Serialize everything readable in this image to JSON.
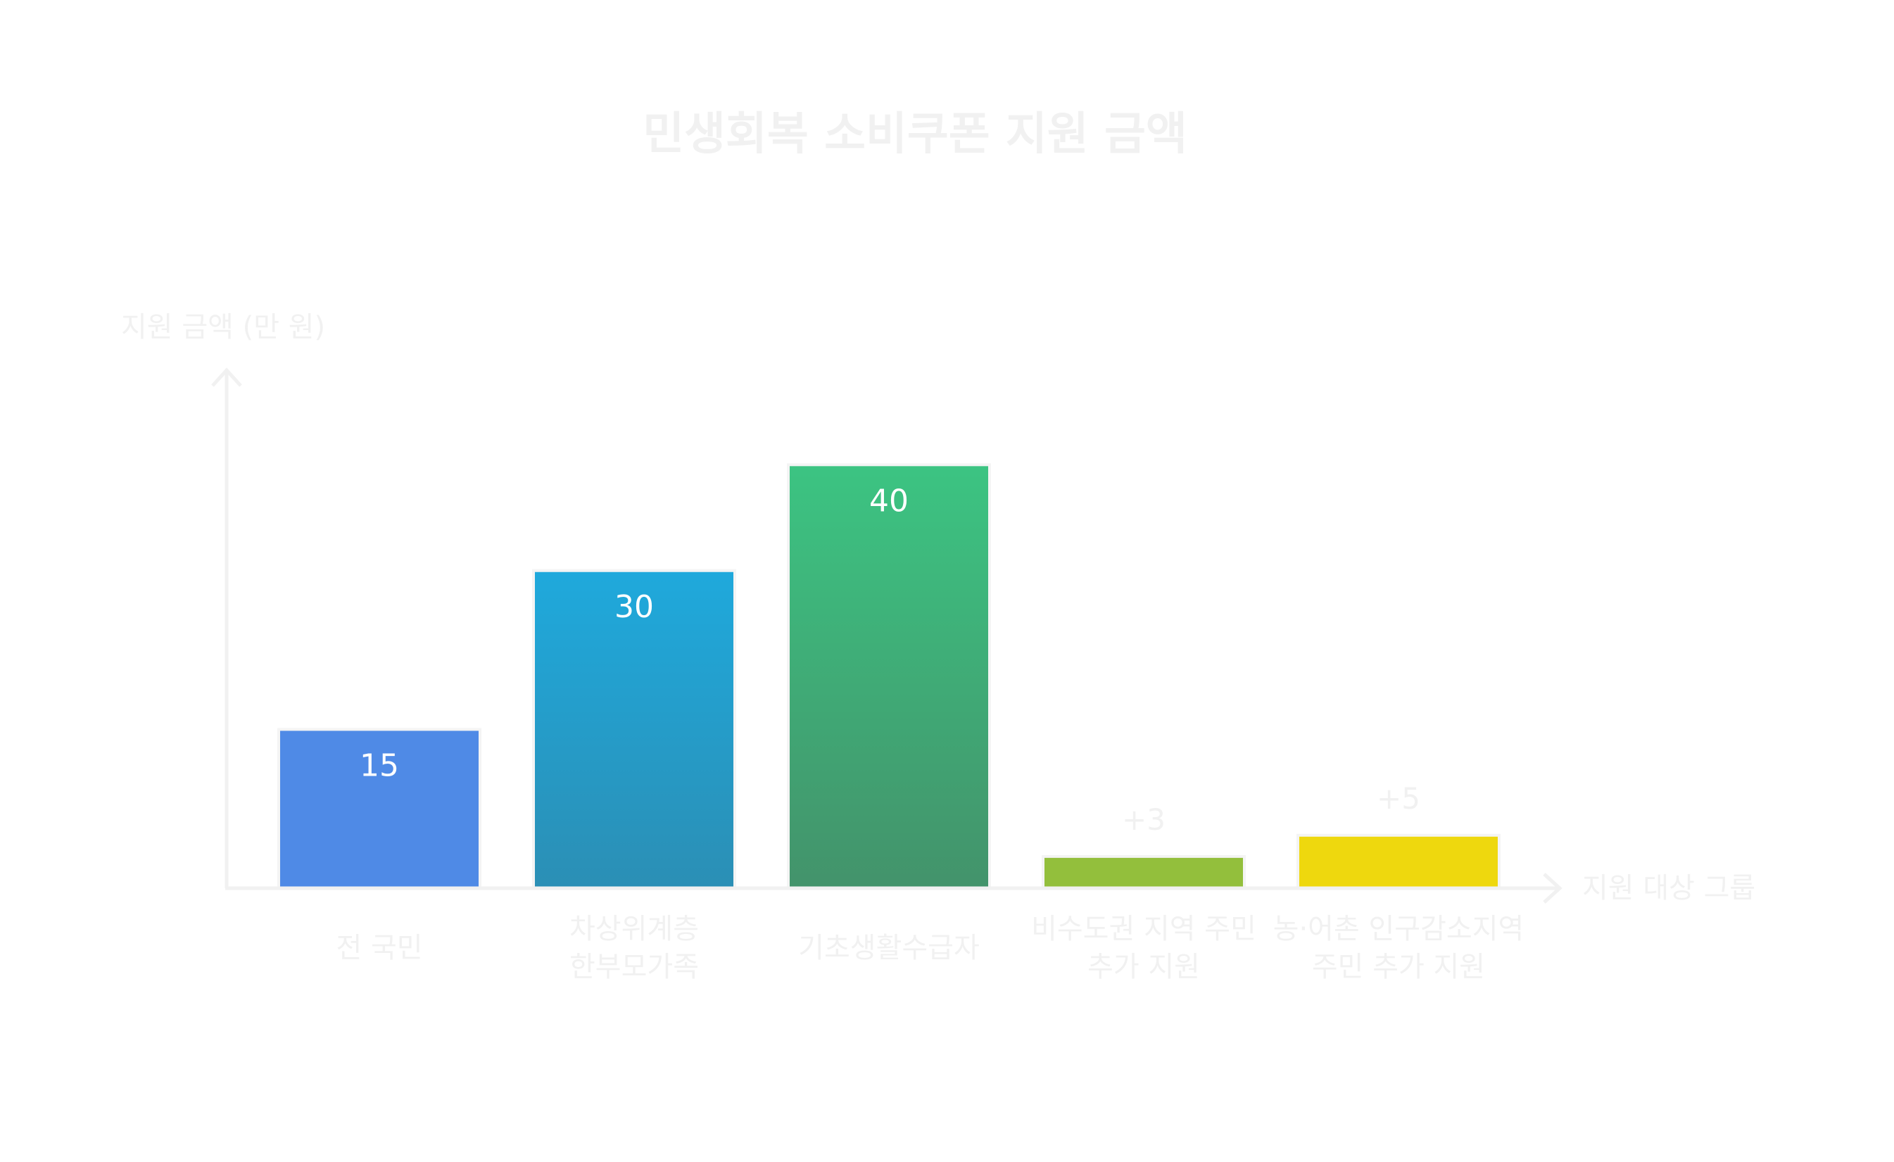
{
  "chart_data": {
    "type": "bar",
    "title": "민생회복 소비쿠폰 지원 금액",
    "ylabel": "지원 금액 (만 원)",
    "xlabel": "지원 대상 그룹",
    "ylim": [
      0,
      48
    ],
    "categories": [
      [
        "전 국민"
      ],
      [
        "차상위계층",
        "한부모가족"
      ],
      [
        "기초생활수급자"
      ],
      [
        "비수도권 지역 주민",
        "추가 지원"
      ],
      [
        "농·어촌 인구감소지역",
        "주민 추가 지원"
      ]
    ],
    "values": [
      15,
      30,
      40,
      3,
      5
    ],
    "value_labels": [
      "15",
      "30",
      "40",
      "+3",
      "+5"
    ],
    "label_position": [
      "inside",
      "inside",
      "inside",
      "above",
      "above"
    ],
    "colors": [
      [
        "#4f8ae6",
        "#4f8ae6"
      ],
      [
        "#1fa9dc",
        "#2b8fb5"
      ],
      [
        "#3cc482",
        "#43936b"
      ],
      [
        "#93bf3c",
        "#93bf3c"
      ],
      [
        "#eed80e",
        "#eed80e"
      ]
    ],
    "grid": false,
    "legend": "none"
  }
}
